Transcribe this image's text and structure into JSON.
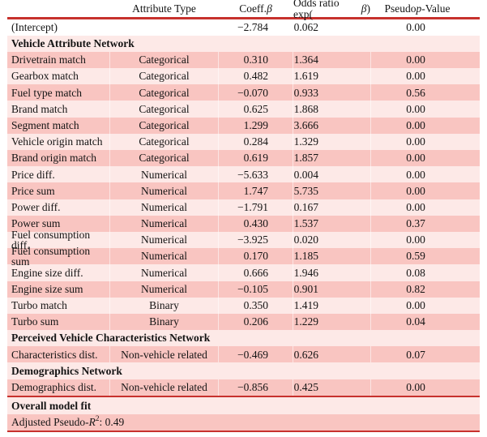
{
  "colors": {
    "accent_rule": "#c7312d",
    "row_dark": "#f9c5c1",
    "row_light": "#fde9e7"
  },
  "table": {
    "header": {
      "attr_type": "Attribute Type",
      "coeff_pre": "Coeff. ",
      "coeff_it": "β",
      "odds_pre": "Odds ratio exp(",
      "odds_it": "β",
      "odds_post": ")",
      "pseudo_pre": "Pseudo ",
      "pseudo_it": "p",
      "pseudo_post": "-Value"
    },
    "rows": [
      {
        "kind": "data",
        "bg": "white",
        "label": "(Intercept)",
        "attr": "",
        "coeff": "−2.784",
        "odds": "0.062",
        "p": "0.00"
      },
      {
        "kind": "section",
        "bg": "light",
        "label": "Vehicle Attribute Network"
      },
      {
        "kind": "data",
        "bg": "dark",
        "label": "Drivetrain match",
        "attr": "Categorical",
        "coeff": "0.310",
        "odds": "1.364",
        "p": "0.00"
      },
      {
        "kind": "data",
        "bg": "light",
        "label": "Gearbox match",
        "attr": "Categorical",
        "coeff": "0.482",
        "odds": "1.619",
        "p": "0.00"
      },
      {
        "kind": "data",
        "bg": "dark",
        "label": "Fuel type match",
        "attr": "Categorical",
        "coeff": "−0.070",
        "odds": "0.933",
        "p": "0.56"
      },
      {
        "kind": "data",
        "bg": "light",
        "label": "Brand match",
        "attr": "Categorical",
        "coeff": "0.625",
        "odds": "1.868",
        "p": "0.00"
      },
      {
        "kind": "data",
        "bg": "dark",
        "label": "Segment match",
        "attr": "Categorical",
        "coeff": "1.299",
        "odds": "3.666",
        "p": "0.00"
      },
      {
        "kind": "data",
        "bg": "light",
        "label": "Vehicle origin match",
        "attr": "Categorical",
        "coeff": "0.284",
        "odds": "1.329",
        "p": "0.00"
      },
      {
        "kind": "data",
        "bg": "dark",
        "label": "Brand origin match",
        "attr": "Categorical",
        "coeff": "0.619",
        "odds": "1.857",
        "p": "0.00"
      },
      {
        "kind": "data",
        "bg": "light",
        "label": "Price diff.",
        "attr": "Numerical",
        "coeff": "−5.633",
        "odds": "0.004",
        "p": "0.00"
      },
      {
        "kind": "data",
        "bg": "dark",
        "label": "Price sum",
        "attr": "Numerical",
        "coeff": "1.747",
        "odds": "5.735",
        "p": "0.00"
      },
      {
        "kind": "data",
        "bg": "light",
        "label": "Power diff.",
        "attr": "Numerical",
        "coeff": "−1.791",
        "odds": "0.167",
        "p": "0.00"
      },
      {
        "kind": "data",
        "bg": "dark",
        "label": "Power sum",
        "attr": "Numerical",
        "coeff": "0.430",
        "odds": "1.537",
        "p": "0.37"
      },
      {
        "kind": "data",
        "bg": "light",
        "label": "Fuel consumption diff.",
        "attr": "Numerical",
        "coeff": "−3.925",
        "odds": "0.020",
        "p": "0.00"
      },
      {
        "kind": "data",
        "bg": "dark",
        "label": "Fuel consumption sum",
        "attr": "Numerical",
        "coeff": "0.170",
        "odds": "1.185",
        "p": "0.59"
      },
      {
        "kind": "data",
        "bg": "light",
        "label": "Engine size diff.",
        "attr": "Numerical",
        "coeff": "0.666",
        "odds": "1.946",
        "p": "0.08"
      },
      {
        "kind": "data",
        "bg": "dark",
        "label": "Engine size sum",
        "attr": "Numerical",
        "coeff": "−0.105",
        "odds": "0.901",
        "p": "0.82"
      },
      {
        "kind": "data",
        "bg": "light",
        "label": "Turbo match",
        "attr": "Binary",
        "coeff": "0.350",
        "odds": "1.419",
        "p": "0.00"
      },
      {
        "kind": "data",
        "bg": "dark",
        "label": "Turbo sum",
        "attr": "Binary",
        "coeff": "0.206",
        "odds": "1.229",
        "p": "0.04"
      },
      {
        "kind": "section",
        "bg": "light",
        "label": "Perceived Vehicle Characteristics Network"
      },
      {
        "kind": "data",
        "bg": "dark",
        "label": "Characteristics dist.",
        "attr": "Non-vehicle related",
        "coeff": "−0.469",
        "odds": "0.626",
        "p": "0.07"
      },
      {
        "kind": "section",
        "bg": "light",
        "label": "Demographics Network"
      },
      {
        "kind": "data",
        "bg": "dark",
        "label": "Demographics dist.",
        "attr": "Non-vehicle related",
        "coeff": "−0.856",
        "odds": "0.425",
        "p": "0.00",
        "rule_after": true
      },
      {
        "kind": "section",
        "bg": "light",
        "label": "Overall model fit"
      },
      {
        "kind": "footer",
        "bg": "dark",
        "pre": "Adjusted Pseudo- ",
        "it": "R",
        "sup": "2",
        "post": ": 0.49"
      }
    ]
  }
}
